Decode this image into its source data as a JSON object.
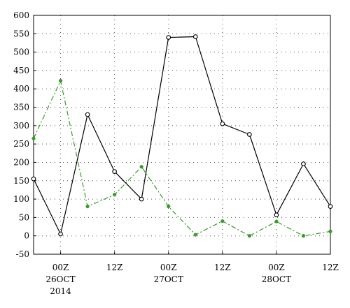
{
  "chart_data": {
    "type": "line",
    "title": "",
    "xlabel": "",
    "ylabel": "",
    "ylim": [
      -50,
      600
    ],
    "yticks": [
      -50,
      0,
      50,
      100,
      150,
      200,
      250,
      300,
      350,
      400,
      450,
      500,
      550,
      600
    ],
    "xlim": [
      0,
      11
    ],
    "xticks": [
      {
        "x": 1,
        "lines": [
          "00Z",
          "26OCT",
          "2014"
        ]
      },
      {
        "x": 3,
        "lines": [
          "12Z"
        ]
      },
      {
        "x": 5,
        "lines": [
          "00Z",
          "27OCT"
        ]
      },
      {
        "x": 7,
        "lines": [
          "12Z"
        ]
      },
      {
        "x": 9,
        "lines": [
          "00Z",
          "28OCT"
        ]
      },
      {
        "x": 11,
        "lines": [
          "12Z"
        ]
      }
    ],
    "grid": true,
    "legend": "none",
    "series": [
      {
        "color": "#000000",
        "line_style": "solid",
        "marker": "open-circle",
        "x": [
          0,
          1,
          2,
          3,
          4,
          5,
          6,
          7,
          8,
          9,
          10,
          11
        ],
        "values": [
          155,
          5,
          330,
          175,
          100,
          540,
          542,
          305,
          276,
          57,
          196,
          80
        ]
      },
      {
        "color": "#3a9a2c",
        "line_style": "dash-dot",
        "marker": "filled-dot",
        "x": [
          0,
          1,
          2,
          3,
          4,
          5,
          6,
          7,
          8,
          9,
          10,
          11
        ],
        "values": [
          265,
          422,
          80,
          112,
          188,
          80,
          3,
          40,
          0,
          39,
          0,
          12
        ]
      }
    ]
  }
}
